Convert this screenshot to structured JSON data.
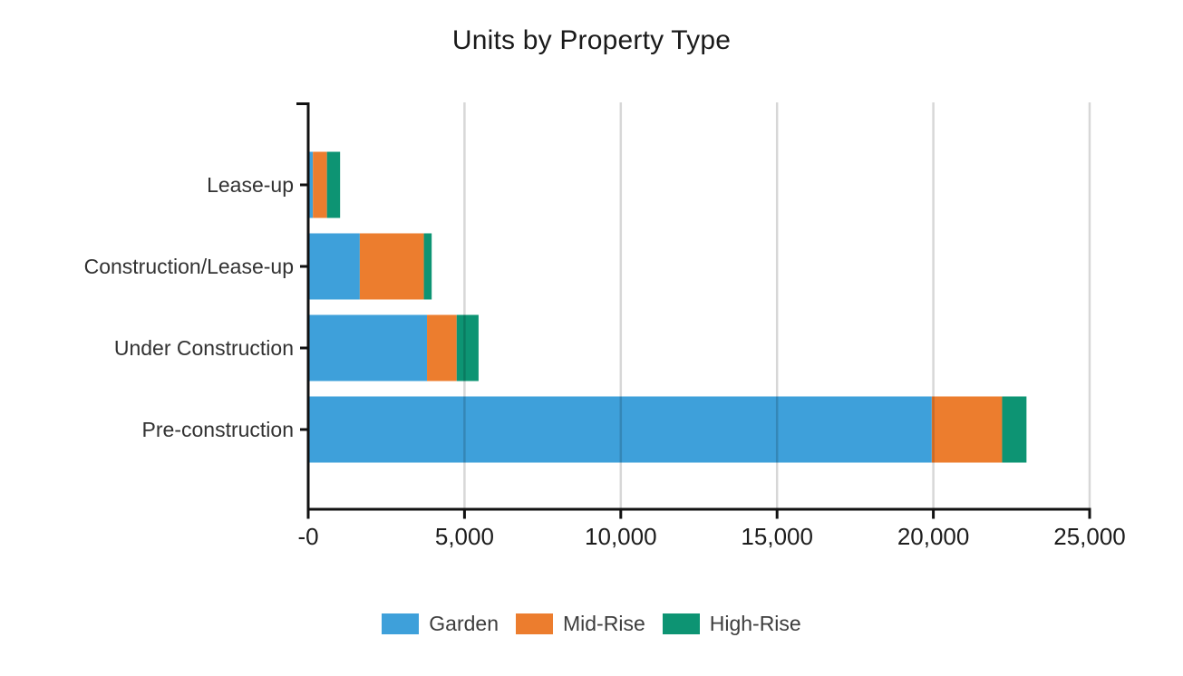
{
  "chart_data": {
    "type": "bar",
    "orientation": "horizontal",
    "stacked": true,
    "title": "Units by Property Type",
    "categories": [
      "Lease-up",
      "Construction/Lease-up",
      "Under Construction",
      "Pre-construction"
    ],
    "series": [
      {
        "name": "Garden",
        "color": "#3EA0DA",
        "values": [
          150,
          1650,
          3800,
          19950
        ]
      },
      {
        "name": "Mid-Rise",
        "color": "#EC7D2E",
        "values": [
          450,
          2050,
          950,
          2250
        ]
      },
      {
        "name": "High-Rise",
        "color": "#0D9473",
        "values": [
          420,
          250,
          700,
          780
        ]
      }
    ],
    "x_axis": {
      "min": 0,
      "max": 25000,
      "tick_interval": 5000,
      "tick_labels": [
        "-0",
        "5,000",
        "10,000",
        "15,000",
        "20,000",
        "25,000"
      ]
    },
    "y_axis": {
      "labels": [
        "Lease-up",
        "Construction/Lease-up",
        "Under Construction",
        "Pre-construction"
      ]
    },
    "legend": {
      "position": "bottom",
      "entries": [
        "Garden",
        "Mid-Rise",
        "High-Rise"
      ]
    },
    "grid": "vertical",
    "colors": {
      "axis": "#111111",
      "gridline": "#d9d9d9",
      "tick_label_text": "#1d1d1d",
      "category_label_text": "#323232",
      "legend_text": "#3d3d3d",
      "title_text": "#1a1a1a",
      "background": "#ffffff"
    }
  }
}
